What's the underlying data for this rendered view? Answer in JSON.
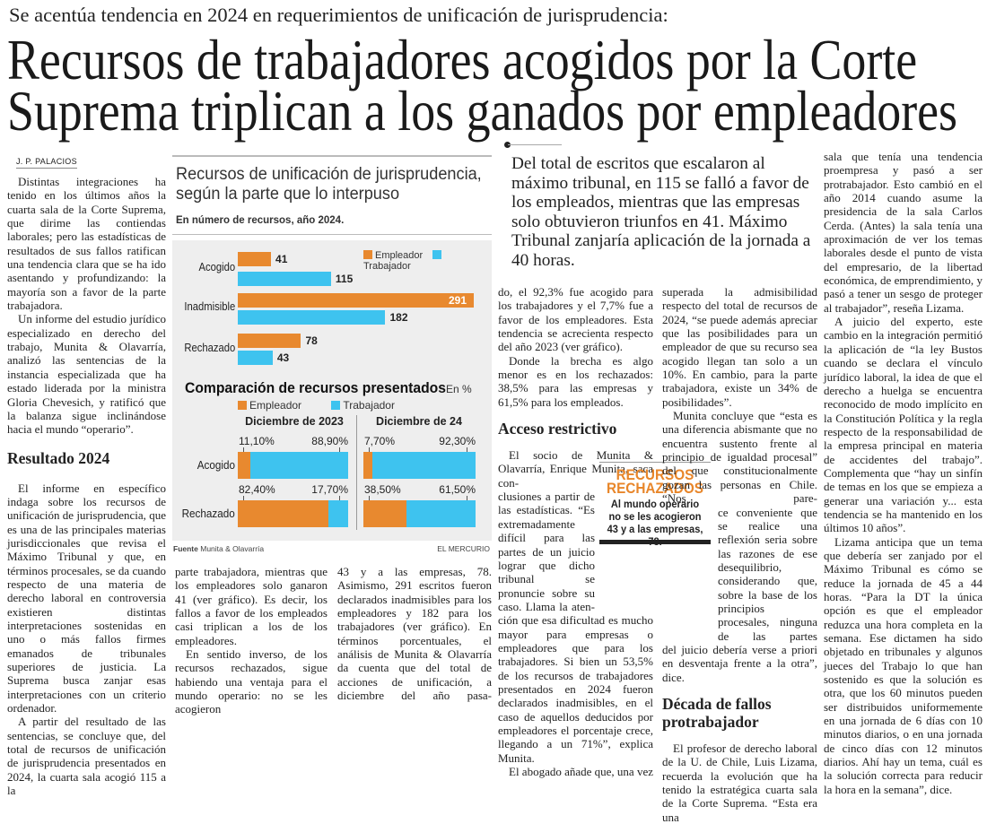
{
  "kicker": "Se acentúa tendencia en 2024 en requerimientos de unificación de jurisprudencia:",
  "headline": [
    "Recursos de trabajadores acogidos por la Corte",
    "Suprema triplican a los ganados por empleadores"
  ],
  "byline": "J. P. PALACIOS",
  "col1": {
    "p1": "Distintas integraciones ha tenido en los últimos años la cuarta sala de la Corte Suprema, que dirime las contiendas laborales; pero las estadísticas de resultados de sus fallos ratifican una tendencia clara que se ha ido asentando y profundizando: la mayoría son a favor de la parte trabajadora.",
    "p2": "Un informe del estudio jurídico especializado en derecho del trabajo, Munita & Olavarría, analizó las sentencias de la instancia especializada que ha estado liderada por la ministra Gloria Chevesich, y ratificó que la balanza sigue inclinándose hacia el mundo “operario”.",
    "subhead": "Resultado 2024",
    "p3": "El informe en específico indaga sobre los recursos de unificación de jurisprudencia, que es una de las principales materias jurisdiccionales que revisa el Máximo Tribunal y que, en términos procesales, se da cuando respecto de una materia de derecho laboral en controversia existieren distintas interpretaciones sostenidas en uno o más fallos firmes emanados de tribunales superiores de justicia. La Suprema busca zanjar esas interpretaciones con un criterio ordenador.",
    "p4": "A partir del resultado de las sentencias, se concluye que, del total de recursos de unificación de jurisprudencia presentados en 2024, la cuarta sala acogió 115 a la"
  },
  "col2": {
    "p1": "parte trabajadora, mientras que los empleadores solo ganaron 41 (ver gráfico). Es decir, los fallos a favor de los empleados casi triplican a los de los empleadores.",
    "p2": "En sentido inverso, de los recursos rechazados, sigue habiendo una ventaja para el mundo operario: no se les acogieron"
  },
  "col3": {
    "p1": "43 y a las empresas, 78. Asimismo, 291 escritos fueron declarados inadmisibles para los empleadores y 182 para los trabajadores (ver gráfico). En términos porcentuales, el análisis de Munita & Olavarría da cuenta que del total de acciones de unificación, a diciembre del año pasa-"
  },
  "pull_quote": "Del total de escritos que escalaron al máximo tribunal, en 115 se falló a favor de los empleados, mientras que las empresas solo obtuvieron triunfos en 41. Máximo Tribunal zanjaría aplicación de la jornada a 40 horas.",
  "col4": {
    "p1": "do, el 92,3% fue acogido para los trabajadores y el 7,7% fue a favor de los empleadores. Esta tendencia se acrecienta respecto del año 2023 (ver gráfico).",
    "p2": "Donde la brecha es algo menor es en los rechazados: 38,5% para las empresas y 61,5% para los empleados.",
    "subhead": "Acceso restrictivo",
    "p3a": "El socio de Munita & Olavarría, Enrique Munita, saca con-",
    "p3b": "clusiones a partir de las estadísticas. “Es extremadamente difícil para las partes de un juicio lograr que dicho tribunal se pronuncie sobre su caso. Llama la aten-",
    "p3c": "ción que esa dificultad es mucho mayor para empresas o empleadores que para los trabajadores. Si bien un 53,5% de los recursos de trabajadores presentados en 2024 fueron declarados inadmisibles, en el caso de aquellos deducidos por empleadores el porcentaje crece, llegando a un 71%”, explica Munita.",
    "p4": "El abogado añade que, una vez"
  },
  "inset": {
    "title": "RECURSOS RECHAZADOS",
    "text": "Al mundo operario no se les acogieron 43 y a las empresas, 78."
  },
  "col5": {
    "p1": "superada la admisibilidad respecto del total de recursos de 2024, “se puede además apreciar que las posibilidades para un empleador de que su recurso sea acogido llegan tan solo a un 10%. En cambio, para la parte trabajadora, existe un 34% de posibilidades”.",
    "p2a": "Munita concluye que “esta es una diferencia abismante que no encuentra sustento frente al principio de igualdad procesal” del que constitucionalmente gozan las personas en Chile. “Nos pare-",
    "p2b": "ce conveniente que se realice una reflexión seria sobre las razones de ese desequilibrio, considerando que, sobre la base de los principios procesales, ninguna de las partes",
    "p2c": "del juicio debería verse a priori en desventaja frente a la otra”, dice.",
    "subhead": "Década de fallos protrabajador",
    "p3": "El profesor de derecho laboral de la U. de Chile, Luis Lizama, recuerda la evolución que ha tenido la estratégica cuarta sala de la Corte Suprema. “Esta era una"
  },
  "col6": {
    "p1": "sala que tenía una tendencia proempresa y pasó a ser protrabajador. Esto cambió en el año 2014 cuando asume la presidencia de la sala Carlos Cerda. (Antes) la sala tenía una aproximación de ver los temas laborales desde el punto de vista del empresario, de la libertad económica, de emprendimiento, y pasó a tener un sesgo de proteger al trabajador”, reseña Lizama.",
    "p2": "A juicio del experto, este cambio en la integración permitió la aplicación de “la ley Bustos cuando se declara el vínculo jurídico laboral, la idea de que el derecho a huelga se encuentra reconocido de modo implícito en la Constitución Política y la regla respecto de la responsabilidad de la empresa principal en materia de accidentes del trabajo”. Complementa que “hay un sinfín de temas en los que se empieza a generar una variación y... esta tendencia se ha mantenido en los últimos 10 años”.",
    "p3": "Lizama anticipa que un tema que debería ser zanjado por el Máximo Tribunal es cómo se reduce la jornada de 45 a 44 horas. “Para la DT la única opción es que el empleador reduzca una hora completa en la semana. Ese dictamen ha sido objetado en tribunales y algunos jueces del Trabajo lo que han sostenido es que la solución es otra, que los 60 minutos pueden ser distribuidos uniformemente en una jornada de 6 días con 10 minutos diarios, o en una jornada de cinco días con 12 minutos diarios. Ahí hay un tema, cuál es la solución correcta para reducir la hora en la semana”, dice."
  },
  "colors": {
    "empleador": "#e8892f",
    "trabajador": "#3ec3ef",
    "panel_bg": "#eeeeee",
    "inset_title": "#e8862a"
  },
  "chart_data": [
    {
      "type": "bar",
      "title": "Recursos de unificación de jurisprudencia, según la parte que lo interpuso",
      "subtitle": "En número de recursos, año 2024.",
      "categories": [
        "Acogido",
        "Inadmisible",
        "Rechazado"
      ],
      "series": [
        {
          "name": "Empleador",
          "values": [
            41,
            291,
            78
          ]
        },
        {
          "name": "Trabajador",
          "values": [
            115,
            182,
            43
          ]
        }
      ],
      "legend": "top-right",
      "xlim": [
        0,
        291
      ]
    },
    {
      "type": "bar",
      "title": "Comparación de recursos presentados",
      "unit": "En %",
      "legend": [
        "Empleador",
        "Trabajador"
      ],
      "panels": [
        {
          "name": "Diciembre de 2023",
          "categories": [
            "Acogido",
            "Rechazado"
          ],
          "empleador": [
            11.1,
            82.4
          ],
          "trabajador": [
            88.9,
            17.7
          ],
          "labels_emp": [
            "11,10%",
            "82,40%"
          ],
          "labels_trab": [
            "88,90%",
            "17,70%"
          ]
        },
        {
          "name": "Diciembre de 24",
          "categories": [
            "Acogido",
            "Rechazado"
          ],
          "empleador": [
            7.7,
            38.5
          ],
          "trabajador": [
            92.3,
            61.5
          ],
          "labels_emp": [
            "7,70%",
            "38,50%"
          ],
          "labels_trab": [
            "92,30%",
            "61,50%"
          ]
        }
      ],
      "source_label": "Fuente",
      "source": "Munita & Olavarría",
      "credit": "EL MERCURIO"
    }
  ]
}
